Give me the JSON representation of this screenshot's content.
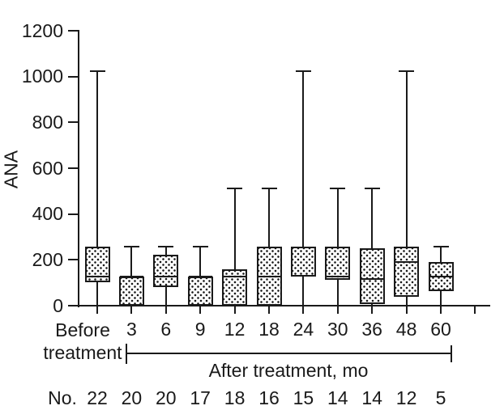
{
  "figure": {
    "y_axis_label": "ANA",
    "x_axis_group_label": "After treatment, mo",
    "n_row_label": "No.",
    "ink_color": "#1a1a1a",
    "background_color": "#ffffff"
  },
  "chart_data": {
    "type": "box",
    "title": "",
    "xlabel": "After treatment, mo",
    "ylabel": "ANA",
    "ylim": [
      0,
      1200
    ],
    "y_ticks": [
      0,
      200,
      400,
      600,
      800,
      1000,
      1200
    ],
    "grid": false,
    "legend": "none",
    "categories": [
      "Before treatment",
      "3",
      "6",
      "9",
      "12",
      "18",
      "24",
      "30",
      "36",
      "48",
      "60"
    ],
    "sample_sizes": [
      22,
      20,
      20,
      17,
      18,
      16,
      15,
      14,
      14,
      12,
      5
    ],
    "boxes": [
      {
        "category": "Before treatment",
        "n": 22,
        "whisker_low": 0,
        "q1": 104,
        "median": 128,
        "q3": 256,
        "whisker_high": 1024
      },
      {
        "category": "3",
        "n": 20,
        "whisker_low": 0,
        "q1": 0,
        "median": 128,
        "q3": 128,
        "whisker_high": 256
      },
      {
        "category": "6",
        "n": 20,
        "whisker_low": 0,
        "q1": 80,
        "median": 128,
        "q3": 224,
        "whisker_high": 256
      },
      {
        "category": "9",
        "n": 17,
        "whisker_low": 0,
        "q1": 0,
        "median": 128,
        "q3": 128,
        "whisker_high": 256
      },
      {
        "category": "12",
        "n": 18,
        "whisker_low": 0,
        "q1": 0,
        "median": 128,
        "q3": 160,
        "whisker_high": 512
      },
      {
        "category": "18",
        "n": 16,
        "whisker_low": 0,
        "q1": 0,
        "median": 128,
        "q3": 256,
        "whisker_high": 512
      },
      {
        "category": "24",
        "n": 15,
        "whisker_low": 0,
        "q1": 128,
        "median": 130,
        "q3": 256,
        "whisker_high": 1024
      },
      {
        "category": "30",
        "n": 14,
        "whisker_low": 0,
        "q1": 112,
        "median": 128,
        "q3": 256,
        "whisker_high": 512
      },
      {
        "category": "36",
        "n": 14,
        "whisker_low": 0,
        "q1": 8,
        "median": 115,
        "q3": 250,
        "whisker_high": 512
      },
      {
        "category": "48",
        "n": 12,
        "whisker_low": 0,
        "q1": 40,
        "median": 192,
        "q3": 256,
        "whisker_high": 1024
      },
      {
        "category": "60",
        "n": 5,
        "whisker_low": 0,
        "q1": 64,
        "median": 128,
        "q3": 192,
        "whisker_high": 256
      }
    ]
  }
}
